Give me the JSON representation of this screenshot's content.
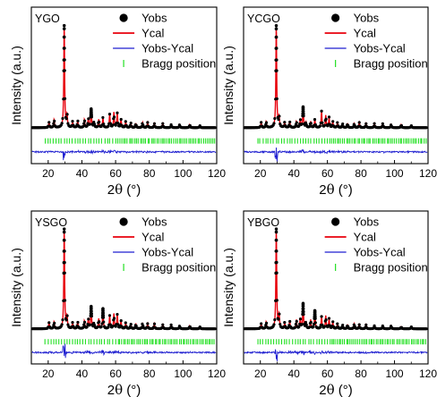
{
  "figure": {
    "ylabel": "Intensity (a.u.)",
    "xlabel_prefix": "2",
    "xlabel_theta": "θ",
    "xlabel_suffix": " (°)",
    "legend": [
      {
        "label": "Yobs",
        "style": "dot",
        "color": "#000000"
      },
      {
        "label": "Ycal",
        "style": "line",
        "color": "#e8000b"
      },
      {
        "label": "Yobs-Ycal",
        "style": "line",
        "color": "#1f1fd0"
      },
      {
        "label": "Bragg position",
        "style": "tick",
        "color": "#22e022"
      }
    ],
    "colors": {
      "obs": "#000000",
      "cal": "#e8000b",
      "diff": "#1f1fd0",
      "bragg": "#22e022"
    }
  },
  "chart_data": [
    {
      "type": "line",
      "panel": "YGO",
      "xlim": [
        10,
        120
      ],
      "xticks": [
        20,
        40,
        60,
        80,
        100,
        120
      ],
      "tick_labels": [
        "20",
        "40",
        "60",
        "80",
        "100",
        "120"
      ],
      "peaks": [
        [
          20.5,
          0.05
        ],
        [
          23.5,
          0.08
        ],
        [
          29.5,
          1.0
        ],
        [
          31.2,
          0.12
        ],
        [
          34.5,
          0.06
        ],
        [
          37.5,
          0.07
        ],
        [
          41.5,
          0.08
        ],
        [
          43.8,
          0.09
        ],
        [
          45.5,
          0.18
        ],
        [
          47.2,
          0.06
        ],
        [
          50.0,
          0.08
        ],
        [
          52.5,
          0.1
        ],
        [
          56.5,
          0.13
        ],
        [
          59.0,
          0.15
        ],
        [
          61.0,
          0.14
        ],
        [
          63.2,
          0.08
        ],
        [
          66.0,
          0.06
        ],
        [
          69.0,
          0.05
        ],
        [
          72.0,
          0.04
        ],
        [
          76.0,
          0.05
        ],
        [
          79.0,
          0.05
        ],
        [
          83.0,
          0.04
        ],
        [
          88.0,
          0.04
        ],
        [
          93.0,
          0.03
        ],
        [
          98.0,
          0.03
        ],
        [
          104.0,
          0.03
        ],
        [
          110.0,
          0.02
        ]
      ]
    },
    {
      "type": "line",
      "panel": "YCGO",
      "xlim": [
        10,
        120
      ],
      "xticks": [
        20,
        40,
        60,
        80,
        100,
        120
      ],
      "tick_labels": [
        "20",
        "40",
        "60",
        "80",
        "100",
        "120"
      ],
      "peaks": [
        [
          20.5,
          0.05
        ],
        [
          23.5,
          0.06
        ],
        [
          29.5,
          1.0
        ],
        [
          31.2,
          0.1
        ],
        [
          34.5,
          0.05
        ],
        [
          37.5,
          0.06
        ],
        [
          41.5,
          0.06
        ],
        [
          43.8,
          0.08
        ],
        [
          45.5,
          0.2
        ],
        [
          47.2,
          0.05
        ],
        [
          50.0,
          0.06
        ],
        [
          52.5,
          0.08
        ],
        [
          56.5,
          0.16
        ],
        [
          59.0,
          0.12
        ],
        [
          61.0,
          0.1
        ],
        [
          63.2,
          0.06
        ],
        [
          66.0,
          0.05
        ],
        [
          69.0,
          0.04
        ],
        [
          72.0,
          0.04
        ],
        [
          76.0,
          0.04
        ],
        [
          79.0,
          0.05
        ],
        [
          83.0,
          0.04
        ],
        [
          88.0,
          0.04
        ],
        [
          93.0,
          0.04
        ],
        [
          98.0,
          0.03
        ],
        [
          104.0,
          0.03
        ],
        [
          110.0,
          0.02
        ]
      ]
    },
    {
      "type": "line",
      "panel": "YSGO",
      "xlim": [
        10,
        120
      ],
      "xticks": [
        20,
        40,
        60,
        80,
        100,
        120
      ],
      "tick_labels": [
        "20",
        "40",
        "60",
        "80",
        "100",
        "120"
      ],
      "peaks": [
        [
          20.5,
          0.06
        ],
        [
          23.5,
          0.07
        ],
        [
          29.5,
          1.0
        ],
        [
          31.2,
          0.12
        ],
        [
          34.5,
          0.06
        ],
        [
          37.5,
          0.07
        ],
        [
          41.5,
          0.08
        ],
        [
          43.8,
          0.1
        ],
        [
          45.5,
          0.22
        ],
        [
          47.2,
          0.06
        ],
        [
          50.0,
          0.1
        ],
        [
          52.5,
          0.2
        ],
        [
          56.5,
          0.13
        ],
        [
          59.0,
          0.15
        ],
        [
          61.0,
          0.14
        ],
        [
          63.2,
          0.08
        ],
        [
          66.0,
          0.06
        ],
        [
          69.0,
          0.05
        ],
        [
          72.0,
          0.05
        ],
        [
          76.0,
          0.06
        ],
        [
          79.0,
          0.05
        ],
        [
          83.0,
          0.05
        ],
        [
          88.0,
          0.04
        ],
        [
          93.0,
          0.04
        ],
        [
          98.0,
          0.03
        ],
        [
          104.0,
          0.03
        ],
        [
          110.0,
          0.02
        ]
      ]
    },
    {
      "type": "line",
      "panel": "YBGO",
      "xlim": [
        10,
        120
      ],
      "xticks": [
        20,
        40,
        60,
        80,
        100,
        120
      ],
      "tick_labels": [
        "20",
        "40",
        "60",
        "80",
        "100",
        "120"
      ],
      "peaks": [
        [
          20.5,
          0.05
        ],
        [
          23.5,
          0.07
        ],
        [
          29.5,
          1.0
        ],
        [
          31.2,
          0.14
        ],
        [
          34.5,
          0.06
        ],
        [
          37.5,
          0.08
        ],
        [
          41.5,
          0.09
        ],
        [
          43.8,
          0.1
        ],
        [
          45.5,
          0.25
        ],
        [
          47.2,
          0.07
        ],
        [
          50.0,
          0.09
        ],
        [
          52.5,
          0.18
        ],
        [
          56.5,
          0.12
        ],
        [
          59.0,
          0.13
        ],
        [
          61.0,
          0.1
        ],
        [
          63.2,
          0.07
        ],
        [
          66.0,
          0.05
        ],
        [
          69.0,
          0.04
        ],
        [
          72.0,
          0.04
        ],
        [
          76.0,
          0.05
        ],
        [
          79.0,
          0.04
        ],
        [
          83.0,
          0.04
        ],
        [
          88.0,
          0.03
        ],
        [
          93.0,
          0.03
        ],
        [
          98.0,
          0.03
        ],
        [
          104.0,
          0.02
        ],
        [
          110.0,
          0.02
        ]
      ]
    }
  ]
}
